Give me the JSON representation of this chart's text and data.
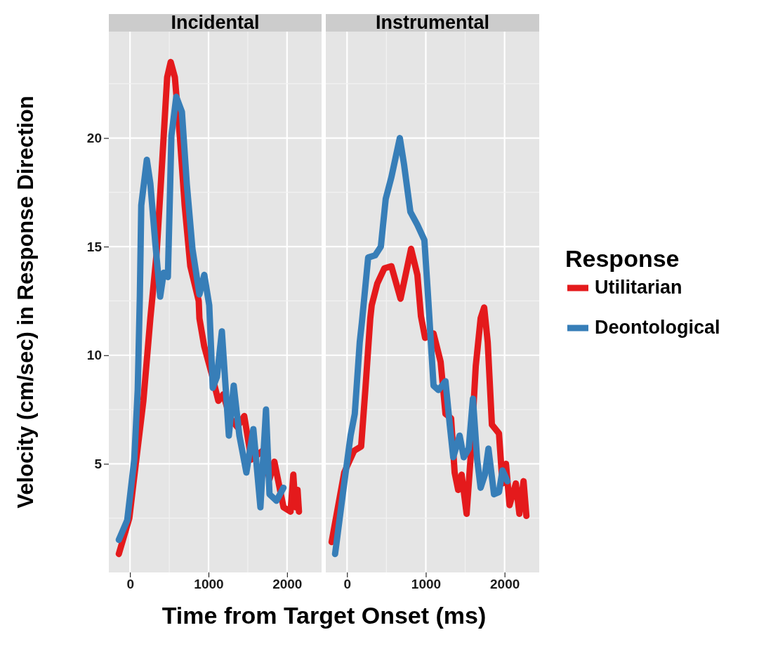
{
  "chart_data": [
    {
      "type": "line",
      "title": "Incidental",
      "ylabel": "Velocity (cm/sec) in Response Direction",
      "xlim": [
        -270,
        2440
      ],
      "xticks": [
        0,
        1000,
        2000
      ],
      "ylim": [
        0,
        24.9
      ],
      "yticks": [
        5,
        10,
        15,
        20
      ],
      "grid": true,
      "legend": false,
      "line_style": "solid",
      "series": [
        {
          "color": "#e41a1c",
          "x": [
            -143,
            -9,
            80,
            170,
            259,
            339,
            411,
            473,
            518,
            571,
            634,
            696,
            768,
            875,
            884,
            946,
            1036,
            1125,
            1188,
            1277,
            1366,
            1455,
            1545,
            1688,
            1777,
            1839,
            1955,
            2045,
            2080,
            2107,
            2134,
            2152
          ],
          "values": [
            0.85,
            2.5,
            5.2,
            7.9,
            11.7,
            14.7,
            19.0,
            22.8,
            23.5,
            22.8,
            20.1,
            16.9,
            14.1,
            12.5,
            11.7,
            10.4,
            9.2,
            7.9,
            8.2,
            7.1,
            6.7,
            7.2,
            5.2,
            5.6,
            4.3,
            5.1,
            3.0,
            2.8,
            4.5,
            3.0,
            3.8,
            2.8
          ]
        },
        {
          "color": "#377eb8",
          "x": [
            -143,
            -36,
            54,
            98,
            125,
            143,
            214,
            259,
            321,
            384,
            429,
            482,
            527,
            589,
            661,
            723,
            795,
            884,
            946,
            1009,
            1054,
            1107,
            1170,
            1259,
            1321,
            1393,
            1482,
            1571,
            1661,
            1732,
            1777,
            1866,
            1955
          ],
          "values": [
            1.5,
            2.4,
            5.2,
            8.4,
            12.7,
            16.9,
            19.0,
            17.9,
            15.2,
            12.7,
            13.8,
            13.6,
            20.1,
            21.9,
            21.2,
            17.9,
            14.9,
            12.8,
            13.7,
            12.3,
            8.5,
            9.0,
            11.1,
            6.3,
            8.6,
            6.3,
            4.6,
            6.6,
            3.0,
            7.5,
            3.6,
            3.3,
            3.9
          ]
        }
      ]
    },
    {
      "type": "line",
      "title": "Instrumental",
      "xlabel": "Time from Target Onset (ms)",
      "legend_title": "Response",
      "xlim": [
        -270,
        2440
      ],
      "xticks": [
        0,
        1000,
        2000
      ],
      "ylim": [
        0,
        24.9
      ],
      "yticks": [
        5,
        10,
        15,
        20
      ],
      "tick_labels": "x",
      "grid": true,
      "legend": "right",
      "line_style": "solid",
      "series": [
        {
          "name": "Utilitarian",
          "color": "#e41a1c",
          "x": [
            -196,
            -36,
            89,
            179,
            232,
            295,
            313,
            384,
            473,
            563,
            679,
            813,
            893,
            938,
            991,
            1098,
            1188,
            1250,
            1321,
            1366,
            1411,
            1455,
            1518,
            1571,
            1634,
            1696,
            1741,
            1786,
            1839,
            1929,
            1973,
            2018,
            2063,
            2143,
            2188,
            2241,
            2277
          ],
          "values": [
            1.4,
            4.6,
            5.6,
            5.8,
            8.4,
            11.7,
            12.3,
            13.3,
            14.0,
            14.1,
            12.6,
            14.9,
            13.7,
            11.8,
            10.8,
            11.0,
            9.7,
            7.3,
            7.1,
            4.6,
            3.8,
            4.5,
            2.7,
            5.4,
            9.5,
            11.7,
            12.2,
            10.6,
            6.8,
            6.4,
            4.1,
            5.0,
            3.1,
            4.1,
            2.7,
            4.2,
            2.6
          ]
        },
        {
          "name": "Deontological",
          "color": "#377eb8",
          "x": [
            -152,
            -36,
            45,
            98,
            161,
            188,
            268,
            357,
            429,
            491,
            563,
            670,
            723,
            804,
            893,
            982,
            1027,
            1098,
            1161,
            1250,
            1304,
            1348,
            1429,
            1482,
            1545,
            1598,
            1652,
            1696,
            1750,
            1795,
            1866,
            1929,
            1973,
            2036
          ],
          "values": [
            0.85,
            4.1,
            6.3,
            7.3,
            10.6,
            11.5,
            14.5,
            14.6,
            15.0,
            17.2,
            18.2,
            20.0,
            18.8,
            16.6,
            16.0,
            15.3,
            12.8,
            8.6,
            8.4,
            8.8,
            6.8,
            5.3,
            6.3,
            5.3,
            5.7,
            8.0,
            5.2,
            3.9,
            4.5,
            5.7,
            3.6,
            3.7,
            4.7,
            4.2
          ]
        }
      ]
    }
  ]
}
